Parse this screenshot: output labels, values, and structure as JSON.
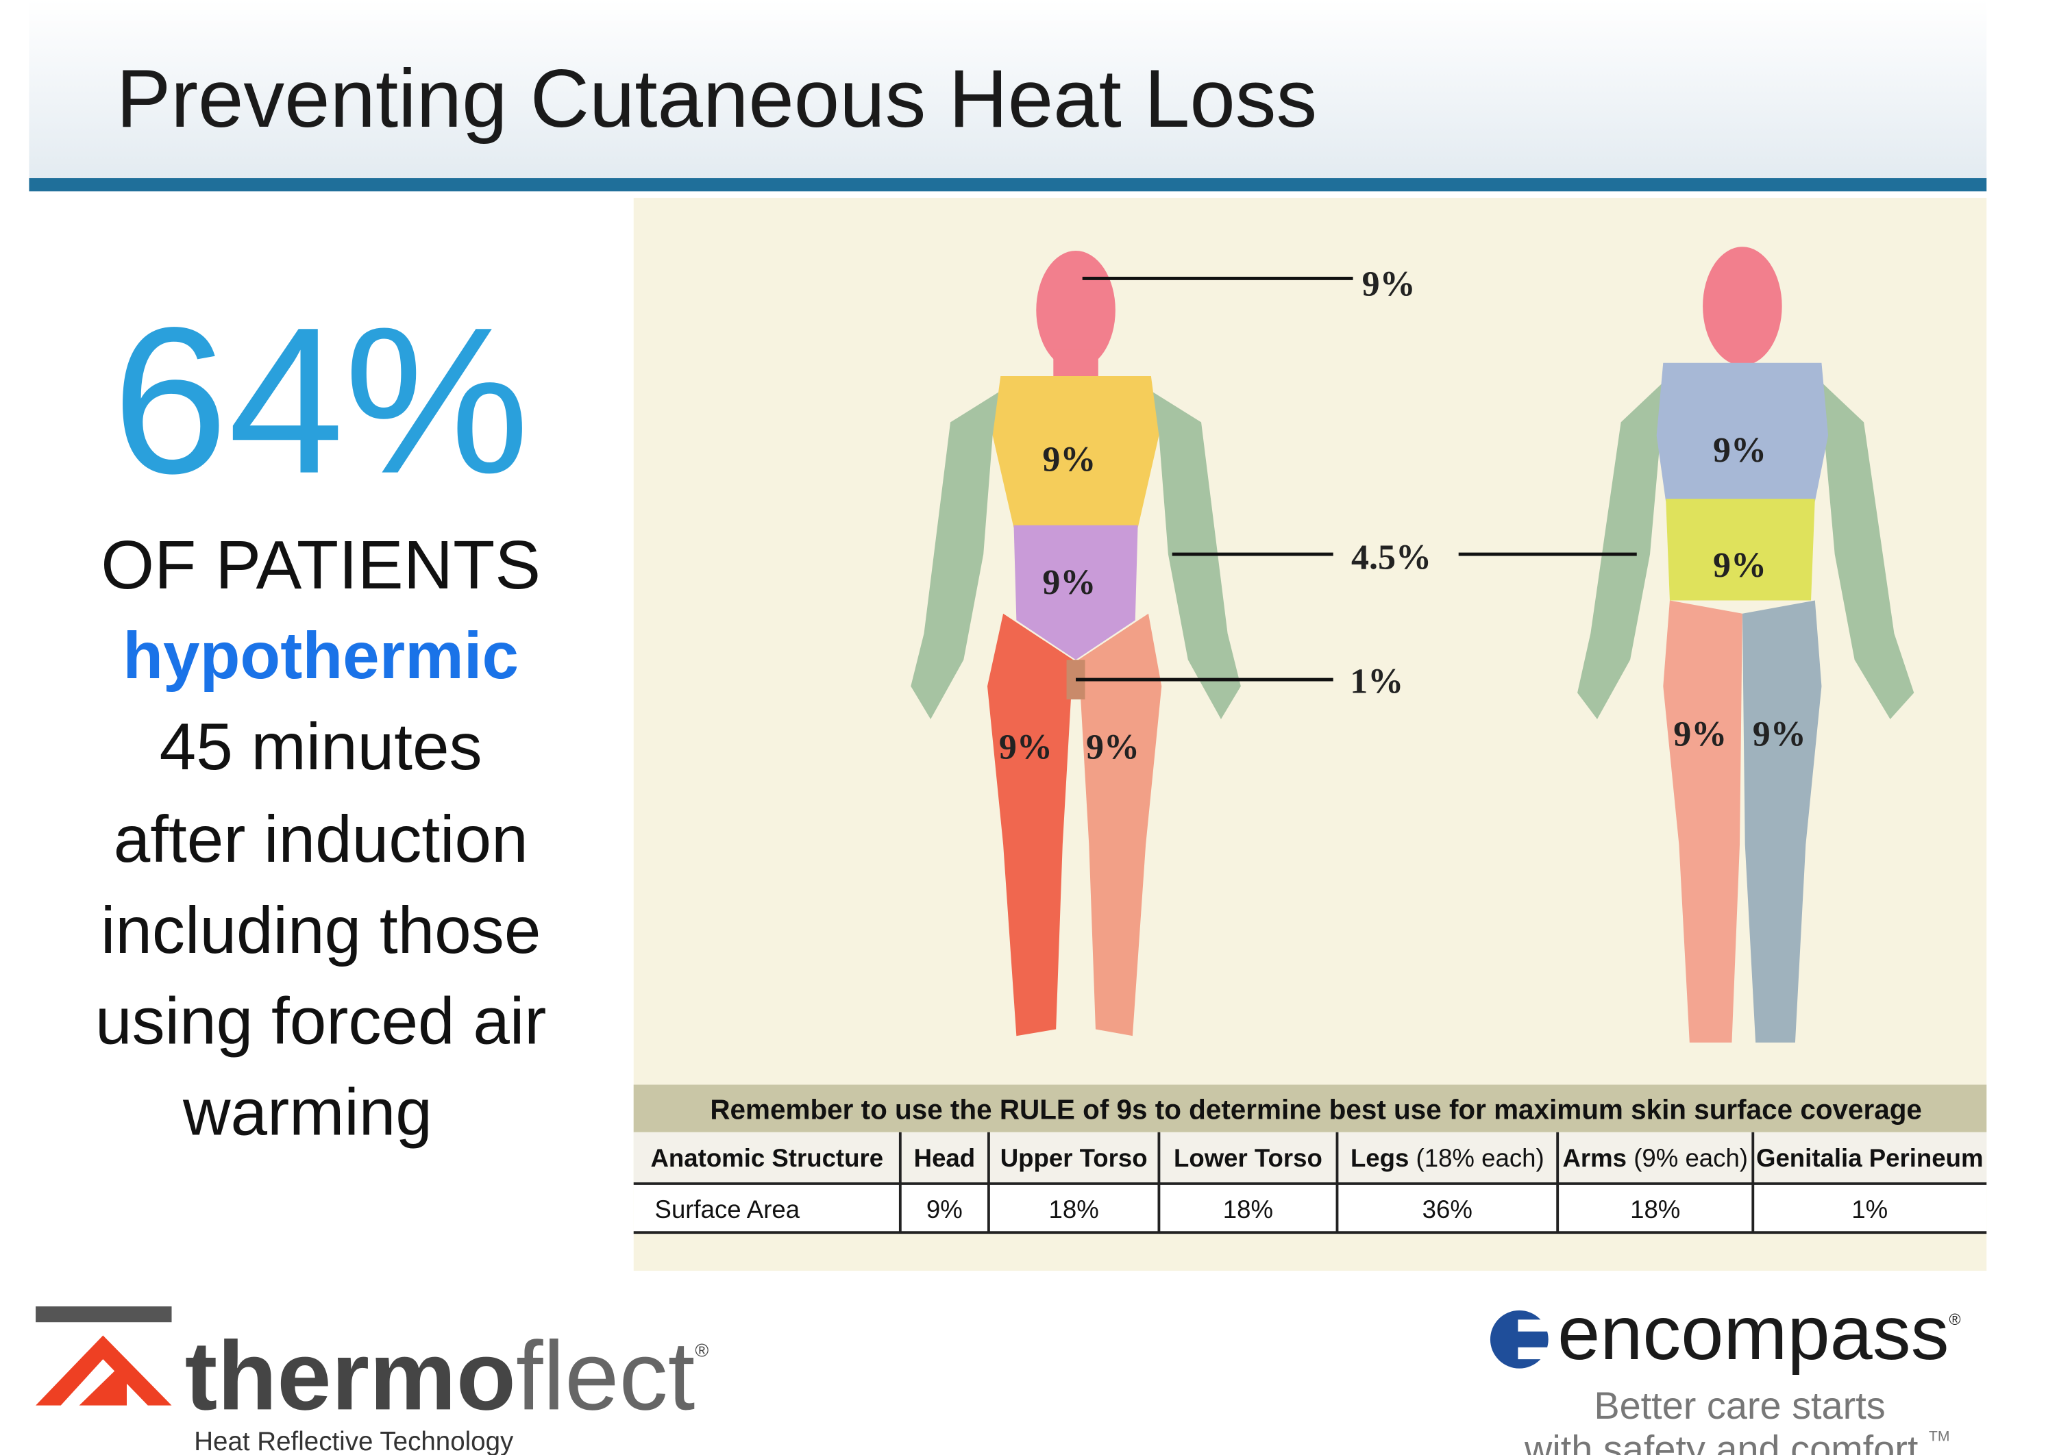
{
  "header": {
    "title": "Preventing Cutaneous Heat Loss"
  },
  "stat": {
    "value": "64%",
    "lines": [
      "OF PATIENTS",
      "hypothermic",
      "45 minutes",
      "after induction",
      "including those",
      "using forced air",
      "warming"
    ]
  },
  "diagram": {
    "callouts": [
      "9%",
      "4.5%",
      "1%"
    ],
    "front_labels": [
      "9%",
      "9%",
      "9%",
      "9%"
    ],
    "back_labels": [
      "9%",
      "9%",
      "9%",
      "9%"
    ]
  },
  "table": {
    "caption": "Remember to use the RULE of 9s to determine best use for maximum skin surface coverage",
    "header": [
      {
        "bold": "Anatomic Structure"
      },
      {
        "bold": "Head"
      },
      {
        "bold": "Upper Torso"
      },
      {
        "bold": "Lower Torso"
      },
      {
        "bold": "Legs",
        "note": "(18% each)"
      },
      {
        "bold": "Arms",
        "note": "(9% each)"
      },
      {
        "bold": "Genitalia Perineum"
      }
    ],
    "rows": [
      [
        "Surface Area",
        "9%",
        "18%",
        "18%",
        "36%",
        "18%",
        "1%"
      ]
    ]
  },
  "logos": {
    "thermoflect": {
      "bold": "thermo",
      "light": "flect",
      "mark": "®",
      "tagline": "Heat Reflective Technology"
    },
    "encompass": {
      "name": "encompass",
      "mark": "®",
      "tagline": [
        "Better care starts",
        "with safety and comfort."
      ],
      "tm": "TM"
    }
  }
}
